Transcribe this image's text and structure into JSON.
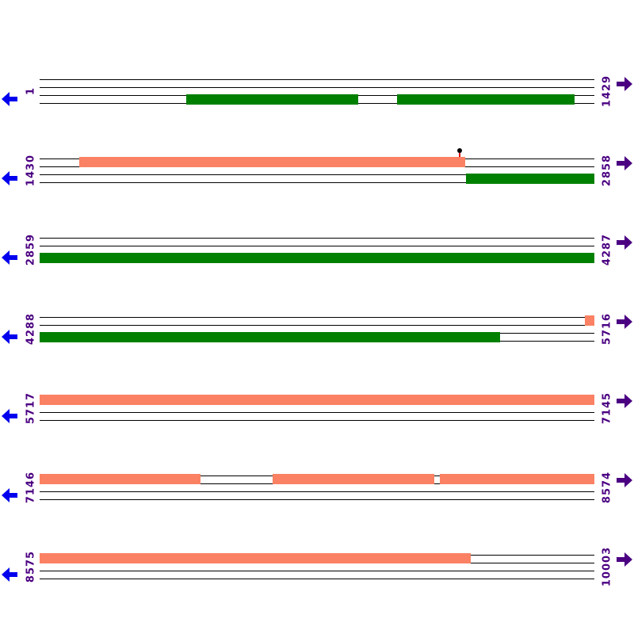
{
  "diagram": {
    "type": "wrapped-linear-sequence-map",
    "rows_count": 7,
    "strand_lines_per_row": 4
  },
  "palette": {
    "top_strand_feature_color": "#FA8163",
    "bottom_strand_feature_color": "#008000",
    "strand_line_color": "#000000",
    "label_color": "#4B0082",
    "left_arrow_color": "#0000EE",
    "right_arrow_color": "#4B0082",
    "marker_dot_color": "#000000",
    "marker_stem_color": "#E00000"
  },
  "icons": {
    "left_arrow": "left-pan-arrow-icon",
    "right_arrow": "right-pan-arrow-icon",
    "marker": "lollipop-marker-icon"
  },
  "rows": [
    {
      "start_label": "1",
      "end_label": "1429",
      "top_segments": [],
      "bottom_segments": [
        {
          "start": 0.264,
          "end": 0.574
        },
        {
          "start": 0.644,
          "end": 0.964
        }
      ],
      "markers": []
    },
    {
      "start_label": "1430",
      "end_label": "2858",
      "top_segments": [
        {
          "start": 0.071,
          "end": 0.767
        }
      ],
      "bottom_segments": [
        {
          "start": 0.769,
          "end": 1.0
        }
      ],
      "markers": [
        {
          "position": 0.757,
          "strand": "top"
        }
      ]
    },
    {
      "start_label": "2859",
      "end_label": "4287",
      "top_segments": [],
      "bottom_segments": [
        {
          "start": 0.0,
          "end": 1.0
        }
      ],
      "markers": []
    },
    {
      "start_label": "4288",
      "end_label": "5716",
      "top_segments": [
        {
          "start": 0.983,
          "end": 1.0
        }
      ],
      "bottom_segments": [
        {
          "start": 0.0,
          "end": 0.83
        }
      ],
      "markers": []
    },
    {
      "start_label": "5717",
      "end_label": "7145",
      "top_segments": [
        {
          "start": 0.0,
          "end": 1.0
        }
      ],
      "bottom_segments": [],
      "markers": []
    },
    {
      "start_label": "7146",
      "end_label": "8574",
      "top_segments": [
        {
          "start": 0.0,
          "end": 0.29
        },
        {
          "start": 0.42,
          "end": 0.711
        },
        {
          "start": 0.721,
          "end": 1.0
        }
      ],
      "bottom_segments": [],
      "markers": []
    },
    {
      "start_label": "8575",
      "end_label": "10003",
      "top_segments": [
        {
          "start": 0.0,
          "end": 0.777
        }
      ],
      "bottom_segments": [],
      "markers": []
    }
  ]
}
